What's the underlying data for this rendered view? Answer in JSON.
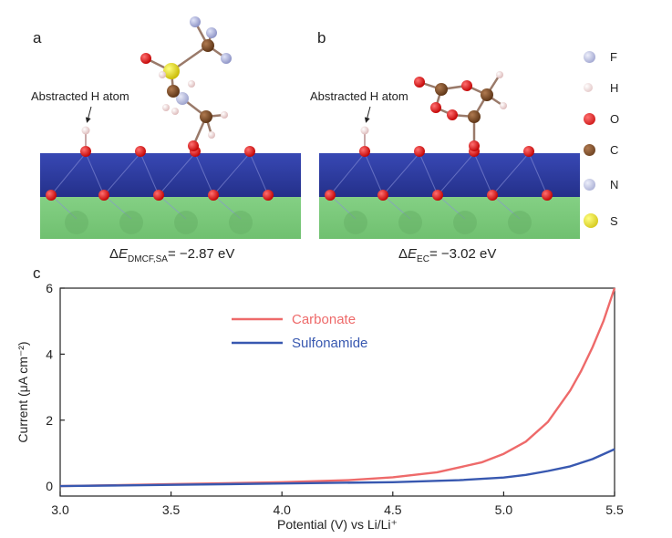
{
  "panels": {
    "a": {
      "letter": "a",
      "annotation": "Abstracted H atom",
      "energy_prefix": "Δ",
      "energy_symbol": "E",
      "energy_subscript": "DMCF,SA",
      "energy_value": "= −2.87 eV"
    },
    "b": {
      "letter": "b",
      "annotation": "Abstracted H atom",
      "energy_prefix": "Δ",
      "energy_symbol": "E",
      "energy_subscript": "EC",
      "energy_value": "= −3.02 eV"
    },
    "c": {
      "letter": "c"
    }
  },
  "atom_legend": [
    {
      "label": "F",
      "color": "#aab0d8"
    },
    {
      "label": "H",
      "color": "#f4dada"
    },
    {
      "label": "O",
      "color": "#e01010"
    },
    {
      "label": "C",
      "color": "#7a4a26"
    },
    {
      "label": "N",
      "color": "#b4b8dc"
    },
    {
      "label": "S",
      "color": "#e8e020"
    }
  ],
  "slab_colors": {
    "top": "#2a3a9c",
    "bottom": "#78c878"
  },
  "chart_data": {
    "type": "line",
    "xlabel": "Potential (V) vs Li/Li⁺",
    "ylabel": "Current (μA cm⁻²)",
    "xlim": [
      3.0,
      5.5
    ],
    "ylim": [
      -0.3,
      6
    ],
    "xticks": [
      "3.0",
      "3.5",
      "4.0",
      "4.5",
      "5.0",
      "5.5"
    ],
    "yticks": [
      "0",
      "2",
      "4",
      "6"
    ],
    "legend_position": "top-center",
    "series": [
      {
        "name": "Carbonate",
        "color": "#ee6a6a",
        "x": [
          3.0,
          3.5,
          4.0,
          4.3,
          4.5,
          4.7,
          4.9,
          5.0,
          5.1,
          5.2,
          5.3,
          5.35,
          5.4,
          5.45,
          5.5
        ],
        "y": [
          0.0,
          0.06,
          0.12,
          0.18,
          0.27,
          0.42,
          0.72,
          0.98,
          1.35,
          1.95,
          2.9,
          3.5,
          4.2,
          5.0,
          6.0
        ]
      },
      {
        "name": "Sulfonamide",
        "color": "#3858b0",
        "x": [
          3.0,
          3.5,
          4.0,
          4.5,
          4.8,
          5.0,
          5.1,
          5.2,
          5.3,
          5.4,
          5.5
        ],
        "y": [
          0.0,
          0.04,
          0.08,
          0.12,
          0.18,
          0.26,
          0.34,
          0.46,
          0.6,
          0.82,
          1.12
        ]
      }
    ]
  }
}
